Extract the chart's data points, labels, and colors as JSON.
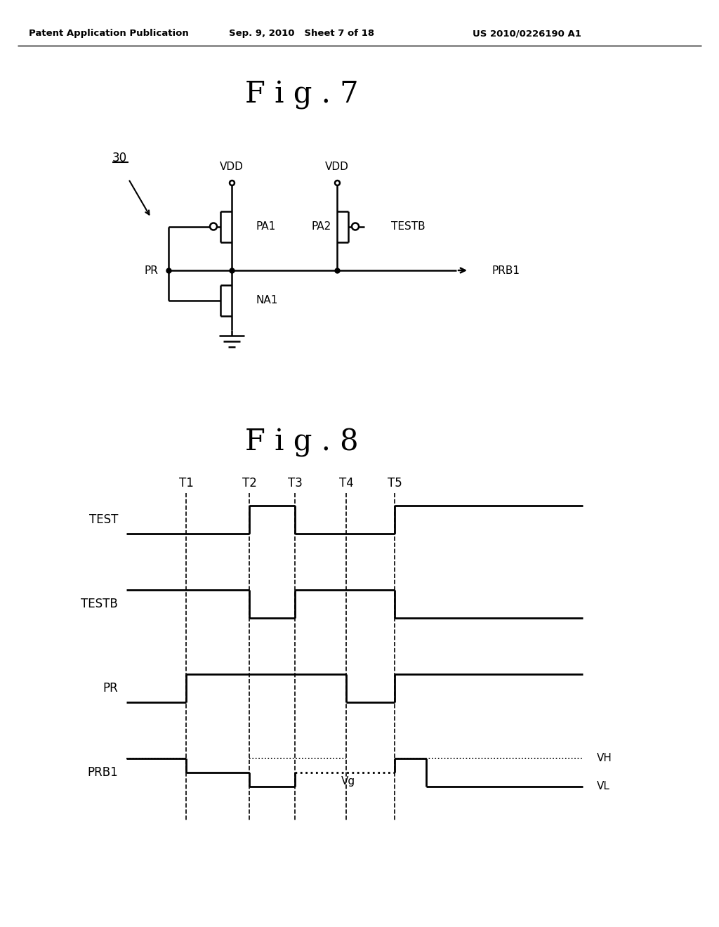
{
  "bg_color": "#ffffff",
  "header_left": "Patent Application Publication",
  "header_mid": "Sep. 9, 2010   Sheet 7 of 18",
  "header_right": "US 2010/0226190 A1",
  "fig7_title": "F i g . 7",
  "fig8_title": "F i g . 8",
  "label_30": "30",
  "label_PR": "PR",
  "label_PA1": "PA1",
  "label_NA1": "NA1",
  "label_VDD": "VDD",
  "label_PA2": "PA2",
  "label_TESTB": "TESTB",
  "label_PRB1": "PRB1",
  "waveform_labels": [
    "TEST",
    "TESTB",
    "PR",
    "PRB1"
  ],
  "time_labels": [
    "T1",
    "T2",
    "T3",
    "T4",
    "T5"
  ],
  "label_VH": "VH",
  "label_VL": "VL",
  "label_Vg": "Vg"
}
